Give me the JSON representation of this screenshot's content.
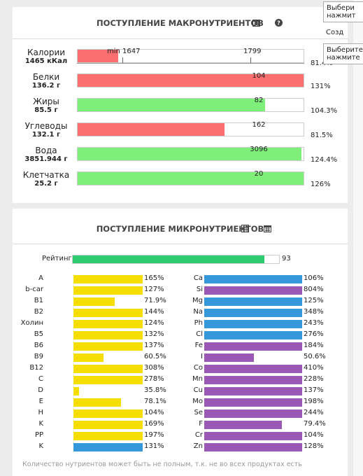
{
  "macro": {
    "title": "ПОСТУПЛЕНИЕ МАКРОНУТРИЕНТОВ",
    "rows": [
      {
        "name": "Калории",
        "amount": "1465 кКал",
        "marks": [
          "min 1647",
          "1799"
        ],
        "fill": 18,
        "percent": "81.4%",
        "color": "#fb6f6f"
      },
      {
        "name": "Белки",
        "amount": "136.2 г",
        "target": "104",
        "fill": 100,
        "percent": "131%",
        "color": "#fb6f6f"
      },
      {
        "name": "Жиры",
        "amount": "85.5 г",
        "target": "82",
        "fill": 83,
        "percent": "104.3%",
        "color": "#7ef07a"
      },
      {
        "name": "Углеводы",
        "amount": "132.1 г",
        "target": "162",
        "fill": 65,
        "percent": "81.5%",
        "color": "#fb6f6f"
      },
      {
        "name": "Вода",
        "amount": "3851.944 г",
        "target": "3096",
        "fill": 99,
        "percent": "124.4%",
        "color": "#7ef07a"
      },
      {
        "name": "Клетчатка",
        "amount": "25.2 г",
        "target": "20",
        "fill": 100,
        "percent": "126%",
        "color": "#7ef07a"
      }
    ]
  },
  "micro": {
    "title": "ПОСТУПЛЕНИЕ МИКРОНУТРИЕНТОВ",
    "rating": {
      "label": "Рейтинг",
      "value": 93,
      "scale": [
        0,
        100
      ],
      "color": "#2ecc71"
    },
    "columns": [
      {
        "scale": [
          30,
          100
        ],
        "items": [
          {
            "name": "A",
            "value": 165,
            "label": "165%",
            "color": "#f5de00"
          },
          {
            "name": "b-car",
            "value": 127,
            "label": "127%",
            "color": "#f5de00"
          },
          {
            "name": "B1",
            "value": 71.9,
            "label": "71.9%",
            "color": "#f5de00"
          },
          {
            "name": "B2",
            "value": 144,
            "label": "144%",
            "color": "#f5de00"
          },
          {
            "name": "Холин",
            "value": 124,
            "label": "124%",
            "color": "#f5de00"
          },
          {
            "name": "B5",
            "value": 132,
            "label": "132%",
            "color": "#f5de00"
          },
          {
            "name": "B6",
            "value": 137,
            "label": "137%",
            "color": "#f5de00"
          },
          {
            "name": "B9",
            "value": 60.5,
            "label": "60.5%",
            "color": "#f5de00"
          },
          {
            "name": "B12",
            "value": 308,
            "label": "308%",
            "color": "#f5de00"
          },
          {
            "name": "C",
            "value": 278,
            "label": "278%",
            "color": "#f5de00"
          },
          {
            "name": "D",
            "value": 35.8,
            "label": "35.8%",
            "color": "#f5de00"
          },
          {
            "name": "E",
            "value": 78.1,
            "label": "78.1%",
            "color": "#f5de00"
          },
          {
            "name": "H",
            "value": 104,
            "label": "104%",
            "color": "#f5de00"
          },
          {
            "name": "K",
            "value": 169,
            "label": "169%",
            "color": "#f5de00"
          },
          {
            "name": "PP",
            "value": 197,
            "label": "197%",
            "color": "#f5de00"
          },
          {
            "name": "K",
            "value": 131,
            "label": "131%",
            "color": "#3498db"
          }
        ]
      },
      {
        "scale": [
          0,
          100
        ],
        "items": [
          {
            "name": "Ca",
            "value": 106,
            "label": "106%",
            "color": "#3498db"
          },
          {
            "name": "Si",
            "value": 804,
            "label": "804%",
            "color": "#9b59b6"
          },
          {
            "name": "Mg",
            "value": 125,
            "label": "125%",
            "color": "#3498db"
          },
          {
            "name": "Na",
            "value": 348,
            "label": "348%",
            "color": "#3498db"
          },
          {
            "name": "Ph",
            "value": 243,
            "label": "243%",
            "color": "#3498db"
          },
          {
            "name": "Cl",
            "value": 276,
            "label": "276%",
            "color": "#3498db"
          },
          {
            "name": "Fe",
            "value": 184,
            "label": "184%",
            "color": "#9b59b6"
          },
          {
            "name": "I",
            "value": 50.6,
            "label": "50.6%",
            "color": "#9b59b6"
          },
          {
            "name": "Co",
            "value": 410,
            "label": "410%",
            "color": "#9b59b6"
          },
          {
            "name": "Mn",
            "value": 228,
            "label": "228%",
            "color": "#9b59b6"
          },
          {
            "name": "Cu",
            "value": 137,
            "label": "137%",
            "color": "#9b59b6"
          },
          {
            "name": "Mo",
            "value": 198,
            "label": "198%",
            "color": "#9b59b6"
          },
          {
            "name": "Se",
            "value": 244,
            "label": "244%",
            "color": "#9b59b6"
          },
          {
            "name": "F",
            "value": 79.4,
            "label": "79.4%",
            "color": "#9b59b6"
          },
          {
            "name": "Cr",
            "value": 104,
            "label": "104%",
            "color": "#9b59b6"
          },
          {
            "name": "Zn",
            "value": 128,
            "label": "128%",
            "color": "#9b59b6"
          }
        ]
      }
    ],
    "footer": "Количество нутриентов может быть не полным, т.к. не во всех продуктах есть"
  },
  "popups": [
    {
      "lines": [
        "Выбери",
        "нажмит"
      ]
    },
    {
      "lines": [
        "Созд"
      ]
    },
    {
      "lines": [
        "Выберите",
        "нажмите"
      ]
    }
  ]
}
